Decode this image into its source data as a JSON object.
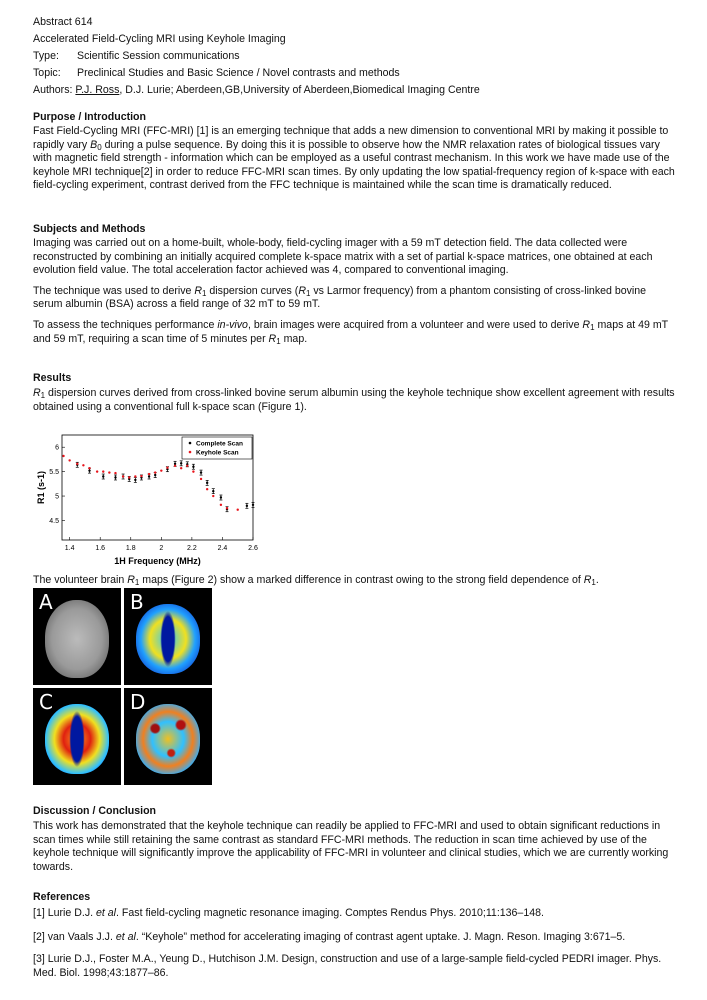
{
  "header": {
    "abstract_number": "Abstract 614",
    "title": "Accelerated Field-Cycling MRI using Keyhole Imaging",
    "type_label": "Type:",
    "type_value": "Scientific Session communications",
    "topic_label": "Topic:",
    "topic_value": "Preclinical Studies and Basic Science / Novel contrasts and methods",
    "authors_label": "Authors:",
    "authors_presenting": "P.J. Ross",
    "authors_rest": ", D.J. Lurie; Aberdeen,GB,University of Aberdeen,Biomedical Imaging Centre"
  },
  "purpose": {
    "heading": "Purpose / Introduction",
    "runs": [
      {
        "t": "Fast Field-Cycling MRI (FFC-MRI) [1] is an emerging technique that adds a new dimension to conventional MRI by making it possible to rapidly vary "
      },
      {
        "t": "B",
        "s": "i"
      },
      {
        "t": "0",
        "s": "sub"
      },
      {
        "t": " during a pulse sequence. By doing this it is possible to observe how the NMR relaxation rates of biological tissues vary with magnetic field strength - information which can be employed as a useful contrast mechanism. In this work we have made use of the keyhole MRI technique[2] in order to reduce FFC-MRI scan times. By only updating the low spatial-frequency region of k-space with each field-cycling experiment, contrast derived from the FFC technique is maintained while the scan time is dramatically reduced."
      }
    ]
  },
  "methods": {
    "heading": "Subjects and Methods",
    "p1": [
      {
        "t": "Imaging was carried out on a home-built, whole-body, field-cycling imager with a 59 mT detection field. The data collected were reconstructed by combining an initially acquired complete k-space matrix with a set of partial k-space matrices, one obtained at each evolution field value. The total acceleration factor achieved was 4, compared to conventional imaging."
      }
    ],
    "p2": [
      {
        "t": "The technique was used to derive "
      },
      {
        "t": "R",
        "s": "i"
      },
      {
        "t": "1",
        "s": "sub"
      },
      {
        "t": " dispersion curves ("
      },
      {
        "t": "R",
        "s": "i"
      },
      {
        "t": "1",
        "s": "sub"
      },
      {
        "t": " vs Larmor frequency) from a phantom consisting of cross-linked bovine serum albumin (BSA) across a field range of 32 mT to 59 mT."
      }
    ],
    "p3": [
      {
        "t": "To assess the techniques performance "
      },
      {
        "t": "in-vivo",
        "s": "i"
      },
      {
        "t": ", brain images were acquired from a volunteer and were used to derive "
      },
      {
        "t": "R",
        "s": "i"
      },
      {
        "t": "1",
        "s": "sub"
      },
      {
        "t": " maps at 49 mT and 59 mT, requiring a scan time of 5 minutes per "
      },
      {
        "t": "R",
        "s": "i"
      },
      {
        "t": "1",
        "s": "sub"
      },
      {
        "t": " map."
      }
    ]
  },
  "results": {
    "heading": "Results",
    "p1": [
      {
        "t": "R",
        "s": "i"
      },
      {
        "t": "1",
        "s": "sub"
      },
      {
        "t": " dispersion curves derived from cross-linked bovine serum albumin using the keyhole technique show excellent agreement with results obtained using a conventional full k-space scan (Figure 1)."
      }
    ],
    "p2": [
      {
        "t": "The volunteer brain "
      },
      {
        "t": "R",
        "s": "i"
      },
      {
        "t": "1",
        "s": "sub"
      },
      {
        "t": " maps (Figure 2) show a marked difference in contrast owing to the strong field dependence of "
      },
      {
        "t": "R",
        "s": "i"
      },
      {
        "t": "1",
        "s": "sub"
      },
      {
        "t": "."
      }
    ],
    "figure2_panels": [
      "A",
      "B",
      "C",
      "D"
    ]
  },
  "chart_data": {
    "type": "scatter",
    "xlabel": "1H Frequency (MHz)",
    "ylabel": "R1 (s-1)",
    "xlim": [
      1.35,
      2.6
    ],
    "ylim": [
      4.1,
      6.25
    ],
    "xticks": [
      "1.4",
      "1.6",
      "1.8",
      "2",
      "2.2",
      "2.4",
      "2.6"
    ],
    "yticks": [
      "4.5",
      "5",
      "5.5",
      "6"
    ],
    "legend": "top-right",
    "series": [
      {
        "name": "Complete Scan",
        "color": "#000000",
        "error_bars": true,
        "x": [
          1.45,
          1.53,
          1.62,
          1.7,
          1.75,
          1.79,
          1.83,
          1.87,
          1.92,
          1.96,
          2.04,
          2.09,
          2.13,
          2.17,
          2.21,
          2.26,
          2.3,
          2.34,
          2.39,
          2.43,
          2.56,
          2.6
        ],
        "y": [
          5.64,
          5.52,
          5.4,
          5.38,
          5.4,
          5.35,
          5.33,
          5.38,
          5.4,
          5.43,
          5.55,
          5.66,
          5.67,
          5.65,
          5.6,
          5.48,
          5.27,
          5.1,
          4.97,
          4.73,
          4.8,
          4.82
        ]
      },
      {
        "name": "Keyhole Scan",
        "color": "#e8141b",
        "error_bars": false,
        "x": [
          1.36,
          1.4,
          1.45,
          1.49,
          1.53,
          1.58,
          1.62,
          1.66,
          1.7,
          1.75,
          1.79,
          1.83,
          1.87,
          1.92,
          1.96,
          2.0,
          2.04,
          2.09,
          2.13,
          2.17,
          2.21,
          2.26,
          2.3,
          2.34,
          2.39,
          2.43,
          2.5
        ],
        "y": [
          5.82,
          5.73,
          5.66,
          5.63,
          5.57,
          5.5,
          5.5,
          5.48,
          5.47,
          5.4,
          5.38,
          5.4,
          5.41,
          5.45,
          5.48,
          5.52,
          5.58,
          5.62,
          5.57,
          5.62,
          5.5,
          5.35,
          5.14,
          5.0,
          4.82,
          4.75,
          4.72
        ]
      }
    ]
  },
  "discussion": {
    "heading": "Discussion / Conclusion",
    "p1": [
      {
        "t": "This work has demonstrated that the keyhole technique can readily be applied to FFC-MRI and used to obtain significant reductions in scan times while still retaining the same contrast as standard FFC-MRI methods. The reduction in scan time achieved by use of the keyhole technique will significantly improve the applicability of FFC-MRI in volunteer and clinical studies, which we are currently working towards."
      }
    ]
  },
  "references": {
    "heading": "References",
    "r1": [
      {
        "t": "[1] Lurie D.J. "
      },
      {
        "t": "et al",
        "s": "i"
      },
      {
        "t": ". Fast field-cycling magnetic resonance imaging. Comptes Rendus Phys. 2010;11:136–148."
      }
    ],
    "r2": [
      {
        "t": "[2] van Vaals J.J. "
      },
      {
        "t": "et al",
        "s": "i"
      },
      {
        "t": ". “Keyhole” method for accelerating imaging of contrast agent uptake. J. Magn. Reson. Imaging 3:671–5."
      }
    ],
    "r3": [
      {
        "t": "[3] Lurie D.J., Foster M.A., Yeung D., Hutchison J.M. Design, construction and use of a large-sample field-cycled PEDRI imager. Phys. Med. Biol. 1998;43:1877–86."
      }
    ]
  }
}
